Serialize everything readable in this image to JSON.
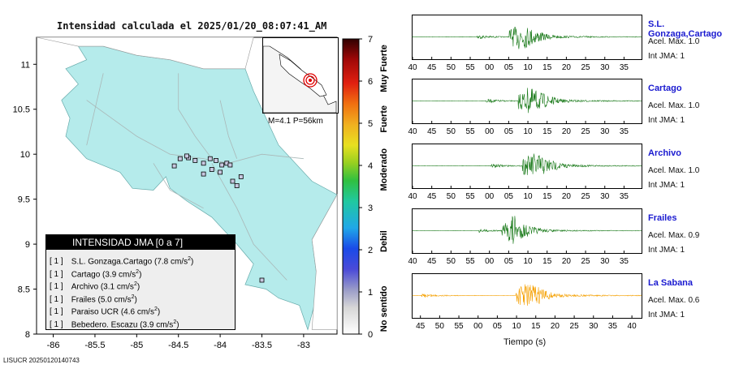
{
  "header": {
    "title": "Intensidad calculada el 2025/01/20_08:07:41_AM"
  },
  "footer": {
    "code": "LISUCR 20250120140743"
  },
  "map": {
    "x_ticks": [
      "-86",
      "-85.5",
      "-85",
      "-84.5",
      "-84",
      "-83.5",
      "-83"
    ],
    "y_ticks": [
      "11",
      "10.5",
      "10",
      "9.5",
      "9",
      "8.5",
      "8"
    ],
    "xlim": [
      -86.2,
      -82.6
    ],
    "ylim": [
      8.0,
      11.3
    ],
    "land_color": "#b5ebeb",
    "event_label": "M=4.1 P=56km"
  },
  "legend": {
    "title": "INTENSIDAD JMA [0 a 7]",
    "items": [
      {
        "level": "[ 1 ]",
        "name": "S.L. Gonzaga.Cartago",
        "value": "(7.8 cm/s",
        "sup": "2",
        "close": ")"
      },
      {
        "level": "[ 1 ]",
        "name": "Cartago",
        "value": "(3.9 cm/s",
        "sup": "2",
        "close": ")"
      },
      {
        "level": "[ 1 ]",
        "name": "Archivo",
        "value": "(3.1 cm/s",
        "sup": "2",
        "close": ")"
      },
      {
        "level": "[ 1 ]",
        "name": "Frailes",
        "value": "(5.0 cm/s",
        "sup": "2",
        "close": ")"
      },
      {
        "level": "[ 1 ]",
        "name": "Paraiso UCR",
        "value": "(4.6 cm/s",
        "sup": "2",
        "close": ")"
      },
      {
        "level": "[ 1 ]",
        "name": "Bebedero. Escazu",
        "value": "(3.9 cm/s",
        "sup": "2",
        "close": ")"
      }
    ]
  },
  "colorbar": {
    "ticks": [
      "0",
      "1",
      "2",
      "3",
      "4",
      "5",
      "6",
      "7"
    ],
    "category_labels": [
      "No sentido",
      "Debil",
      "Moderado",
      "Fuerte",
      "Muy Fuerte"
    ]
  },
  "waveforms": {
    "x_tick_labels_main": [
      "40",
      "45",
      "50",
      "55",
      "00",
      "05",
      "10",
      "15",
      "20",
      "25",
      "30",
      "35"
    ],
    "x_tick_labels_last": [
      "45",
      "50",
      "55",
      "00",
      "05",
      "10",
      "15",
      "20",
      "25",
      "30",
      "35",
      "40"
    ],
    "xlabel": "Tiempo (s)",
    "stations": [
      {
        "name": "S.L. Gonzaga,Cartago",
        "acel": "Acel. Max. 1.0",
        "jma": "Int JMA: 1",
        "color": "#1a7a1a"
      },
      {
        "name": "Cartago",
        "acel": "Acel. Max. 1.0",
        "jma": "Int JMA: 1",
        "color": "#1a7a1a"
      },
      {
        "name": "Archivo",
        "acel": "Acel. Max. 1.0",
        "jma": "Int JMA: 1",
        "color": "#1a7a1a"
      },
      {
        "name": "Frailes",
        "acel": "Acel. Max. 0.9",
        "jma": "Int JMA: 1",
        "color": "#1a7a1a"
      },
      {
        "name": "La Sabana",
        "acel": "Acel. Max. 0.6",
        "jma": "Int JMA: 1",
        "color": "#f5a000"
      }
    ]
  },
  "chart_data": [
    {
      "type": "scatter",
      "title": "Intensidad calculada el 2025/01/20_08:07:41_AM",
      "xlim": [
        -86.2,
        -82.6
      ],
      "ylim": [
        8.0,
        11.3
      ],
      "x_ticks": [
        -86,
        -85.5,
        -85,
        -84.5,
        -84,
        -83.5,
        -83
      ],
      "y_ticks": [
        8,
        8.5,
        9,
        9.5,
        10,
        10.5,
        11
      ],
      "series": [
        {
          "x": [
            -84.55,
            -84.48,
            -84.38,
            -84.3,
            -84.2,
            -84.12,
            -84.05,
            -83.98,
            -83.92,
            -83.88,
            -84.1,
            -84.0,
            -84.2,
            -83.75,
            -83.85,
            -83.8,
            -83.5,
            -84.4
          ],
          "y": [
            9.87,
            9.95,
            9.96,
            9.93,
            9.9,
            9.95,
            9.93,
            9.88,
            9.9,
            9.88,
            9.83,
            9.8,
            9.78,
            9.75,
            9.7,
            9.65,
            8.6,
            9.98
          ]
        }
      ]
    },
    {
      "type": "line",
      "xlabel": "Tiempo (s)",
      "series": [
        {
          "name": "S.L. Gonzaga,Cartago",
          "peak": 1.0
        },
        {
          "name": "Cartago",
          "peak": 1.0
        },
        {
          "name": "Archivo",
          "peak": 1.0
        },
        {
          "name": "Frailes",
          "peak": 0.9
        },
        {
          "name": "La Sabana",
          "peak": 0.6
        }
      ]
    }
  ]
}
